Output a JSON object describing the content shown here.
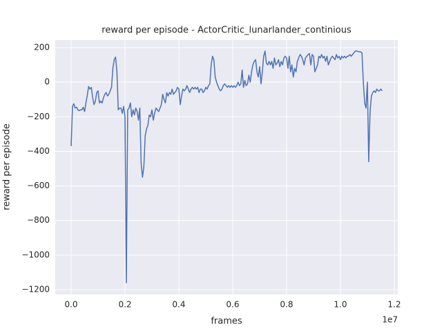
{
  "chart_data": {
    "type": "line",
    "title": "reward per episode - ActorCritic_lunarlander_continious",
    "xlabel": "frames",
    "ylabel": "reward per episode",
    "x_offset_label": "1e7",
    "color": "#4c72b0",
    "grid": true,
    "xlim": [
      -0.059,
      1.213
    ],
    "ylim": [
      -1228,
      244
    ],
    "xticks": [
      {
        "value": 0,
        "label": "0.0"
      },
      0.2,
      0.4,
      0.6,
      0.8,
      {
        "value": 1,
        "label": "1.0"
      },
      1.2
    ],
    "yticks": [
      {
        "value": -1200,
        "label": "−1200"
      },
      {
        "value": -1000,
        "label": "−1000"
      },
      {
        "value": -800,
        "label": "−800"
      },
      {
        "value": -600,
        "label": "−600"
      },
      {
        "value": -400,
        "label": "−400"
      },
      {
        "value": -200,
        "label": "−200"
      },
      0,
      200
    ],
    "x": [
      0,
      0.005,
      0.01,
      0.015,
      0.02,
      0.025,
      0.03,
      0.035,
      0.04,
      0.045,
      0.05,
      0.055,
      0.06,
      0.065,
      0.07,
      0.075,
      0.08,
      0.085,
      0.09,
      0.095,
      0.1,
      0.105,
      0.11,
      0.115,
      0.12,
      0.125,
      0.13,
      0.135,
      0.14,
      0.145,
      0.15,
      0.155,
      0.16,
      0.165,
      0.17,
      0.175,
      0.18,
      0.185,
      0.19,
      0.195,
      0.2,
      0.205,
      0.21,
      0.215,
      0.22,
      0.225,
      0.23,
      0.235,
      0.24,
      0.245,
      0.25,
      0.255,
      0.26,
      0.265,
      0.27,
      0.275,
      0.28,
      0.285,
      0.29,
      0.295,
      0.3,
      0.305,
      0.31,
      0.315,
      0.32,
      0.325,
      0.33,
      0.335,
      0.34,
      0.345,
      0.35,
      0.355,
      0.36,
      0.365,
      0.37,
      0.375,
      0.38,
      0.385,
      0.39,
      0.395,
      0.4,
      0.405,
      0.41,
      0.415,
      0.42,
      0.425,
      0.43,
      0.435,
      0.44,
      0.445,
      0.45,
      0.455,
      0.46,
      0.465,
      0.47,
      0.475,
      0.48,
      0.485,
      0.49,
      0.495,
      0.5,
      0.505,
      0.51,
      0.515,
      0.52,
      0.525,
      0.53,
      0.535,
      0.54,
      0.545,
      0.55,
      0.555,
      0.56,
      0.565,
      0.57,
      0.575,
      0.58,
      0.585,
      0.59,
      0.595,
      0.6,
      0.605,
      0.61,
      0.615,
      0.62,
      0.625,
      0.63,
      0.635,
      0.64,
      0.645,
      0.65,
      0.655,
      0.66,
      0.665,
      0.67,
      0.675,
      0.68,
      0.685,
      0.69,
      0.695,
      0.7,
      0.705,
      0.71,
      0.715,
      0.72,
      0.725,
      0.73,
      0.735,
      0.74,
      0.745,
      0.75,
      0.755,
      0.76,
      0.765,
      0.77,
      0.775,
      0.78,
      0.785,
      0.79,
      0.795,
      0.8,
      0.805,
      0.81,
      0.815,
      0.82,
      0.825,
      0.83,
      0.835,
      0.84,
      0.845,
      0.85,
      0.855,
      0.86,
      0.865,
      0.87,
      0.875,
      0.88,
      0.885,
      0.89,
      0.895,
      0.9,
      0.905,
      0.91,
      0.915,
      0.92,
      0.925,
      0.93,
      0.935,
      0.94,
      0.945,
      0.95,
      0.955,
      0.96,
      0.965,
      0.97,
      0.975,
      0.98,
      0.985,
      0.99,
      0.995,
      1,
      1.005,
      1.01,
      1.015,
      1.02,
      1.025,
      1.03,
      1.035,
      1.04,
      1.045,
      1.05,
      1.055,
      1.06,
      1.065,
      1.07,
      1.075,
      1.08,
      1.085,
      1.09,
      1.095,
      1.1,
      1.105,
      1.11,
      1.115,
      1.12,
      1.125,
      1.13,
      1.135,
      1.14,
      1.145,
      1.15,
      1.155
    ],
    "values": [
      -370,
      -140,
      -125,
      -150,
      -145,
      -160,
      -165,
      -160,
      -160,
      -145,
      -170,
      -120,
      -75,
      -25,
      -40,
      -30,
      -90,
      -130,
      -110,
      -60,
      -50,
      -120,
      -110,
      -120,
      -90,
      -70,
      -60,
      -80,
      -70,
      -50,
      -30,
      80,
      130,
      145,
      60,
      -160,
      -150,
      -150,
      -180,
      -140,
      -200,
      -1160,
      -160,
      -150,
      -120,
      -200,
      -160,
      -190,
      -150,
      -170,
      -220,
      -150,
      -470,
      -550,
      -490,
      -310,
      -270,
      -250,
      -190,
      -200,
      -160,
      -220,
      -180,
      -150,
      -160,
      -170,
      -150,
      -130,
      -70,
      -100,
      -120,
      -60,
      -80,
      -60,
      -70,
      -40,
      -70,
      -60,
      -50,
      -30,
      -40,
      -130,
      -80,
      -40,
      -50,
      -40,
      -20,
      -40,
      -60,
      -40,
      -30,
      -40,
      -30,
      -40,
      -30,
      -60,
      -40,
      -40,
      -60,
      -50,
      -30,
      -40,
      -20,
      -10,
      100,
      150,
      130,
      30,
      0,
      -20,
      -40,
      -50,
      -40,
      -20,
      -10,
      -20,
      -30,
      -20,
      -30,
      -20,
      -30,
      -20,
      -30,
      -20,
      0,
      -20,
      -10,
      70,
      -30,
      10,
      -20,
      -10,
      40,
      0,
      60,
      100,
      120,
      130,
      60,
      30,
      90,
      -10,
      60,
      150,
      180,
      110,
      100,
      120,
      100,
      120,
      80,
      140,
      100,
      110,
      130,
      90,
      120,
      100,
      140,
      150,
      140,
      80,
      150,
      60,
      100,
      30,
      80,
      60,
      120,
      140,
      160,
      150,
      130,
      100,
      140,
      150,
      160,
      165,
      100,
      160,
      150,
      60,
      80,
      100,
      150,
      140,
      160,
      140,
      150,
      120,
      150,
      100,
      120,
      140,
      150,
      140,
      130,
      160,
      140,
      150,
      130,
      150,
      140,
      150,
      140,
      150,
      150,
      160,
      150,
      160,
      170,
      180,
      180,
      178,
      175,
      175,
      170,
      0,
      -120,
      -150,
      0,
      -460,
      -170,
      -80,
      -60,
      -50,
      -60,
      -40,
      -50,
      -50,
      -40,
      -50
    ]
  }
}
